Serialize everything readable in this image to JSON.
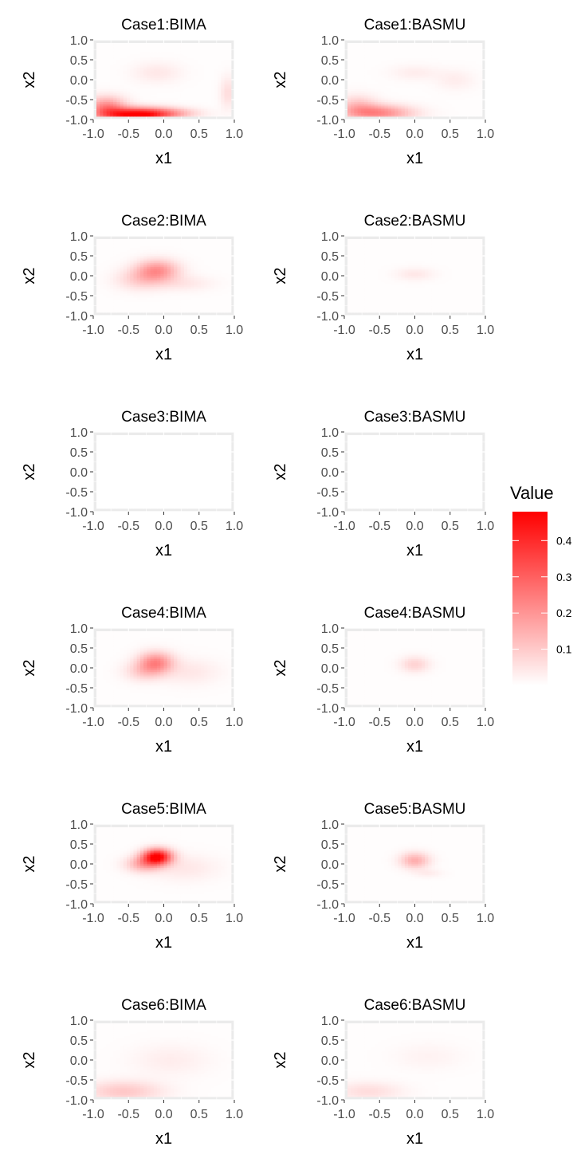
{
  "colors": {
    "low": "#ffffff",
    "high": "#ff0000",
    "panel_background": "#ebebeb",
    "grid_line": "#ffffff",
    "tick_text": "#4d4d4d",
    "axis_title_text": "#000000"
  },
  "legend": {
    "title": "Value",
    "placement": "right",
    "limits": [
      0,
      0.48
    ],
    "breaks": [
      0.1,
      0.2,
      0.3,
      0.4
    ],
    "break_labels": [
      "0.1",
      "0.2",
      "0.3",
      "0.4"
    ]
  },
  "chart_data": [
    {
      "type": "heatmap",
      "title": "Case1:BIMA",
      "xlabel": "x1",
      "ylabel": "x2",
      "xlim": [
        -1,
        1
      ],
      "ylim": [
        -1,
        1
      ],
      "x_ticks": [
        -1.0,
        -0.5,
        0.0,
        0.5,
        1.0
      ],
      "x_tick_labels": [
        "-1.0",
        "-0.5",
        "0.0",
        "0.5",
        "1.0"
      ],
      "y_ticks": [
        -1.0,
        -0.5,
        0.0,
        0.5,
        1.0
      ],
      "y_tick_labels": [
        "-1.0",
        "-0.5",
        "0.0",
        "0.5",
        "1.0"
      ],
      "grid": true,
      "blobs": [
        {
          "x": -0.4,
          "y": -0.95,
          "sx": 0.35,
          "sy": 0.13,
          "value": 0.48
        },
        {
          "x": -0.85,
          "y": -0.75,
          "sx": 0.2,
          "sy": 0.2,
          "value": 0.22
        },
        {
          "x": 0.1,
          "y": -0.9,
          "sx": 0.3,
          "sy": 0.1,
          "value": 0.1
        },
        {
          "x": 0.95,
          "y": -0.35,
          "sx": 0.08,
          "sy": 0.3,
          "value": 0.06
        },
        {
          "x": -0.1,
          "y": 0.2,
          "sx": 0.25,
          "sy": 0.2,
          "value": 0.04
        }
      ]
    },
    {
      "type": "heatmap",
      "title": "Case1:BASMU",
      "xlabel": "x1",
      "ylabel": "x2",
      "xlim": [
        -1,
        1
      ],
      "ylim": [
        -1,
        1
      ],
      "x_ticks": [
        -1.0,
        -0.5,
        0.0,
        0.5,
        1.0
      ],
      "x_tick_labels": [
        "-1.0",
        "-0.5",
        "0.0",
        "0.5",
        "1.0"
      ],
      "y_ticks": [
        -1.0,
        -0.5,
        0.0,
        0.5,
        1.0
      ],
      "y_tick_labels": [
        "-1.0",
        "-0.5",
        "0.0",
        "0.5",
        "1.0"
      ],
      "grid": true,
      "blobs": [
        {
          "x": -0.55,
          "y": -0.9,
          "sx": 0.35,
          "sy": 0.15,
          "value": 0.22
        },
        {
          "x": -0.85,
          "y": -0.7,
          "sx": 0.2,
          "sy": 0.2,
          "value": 0.1
        },
        {
          "x": 0.0,
          "y": 0.2,
          "sx": 0.25,
          "sy": 0.15,
          "value": 0.03
        },
        {
          "x": 0.6,
          "y": 0.0,
          "sx": 0.2,
          "sy": 0.2,
          "value": 0.03
        }
      ]
    },
    {
      "type": "heatmap",
      "title": "Case2:BIMA",
      "xlabel": "x1",
      "ylabel": "x2",
      "xlim": [
        -1,
        1
      ],
      "ylim": [
        -1,
        1
      ],
      "x_ticks": [
        -1.0,
        -0.5,
        0.0,
        0.5,
        1.0
      ],
      "x_tick_labels": [
        "-1.0",
        "-0.5",
        "0.0",
        "0.5",
        "1.0"
      ],
      "y_ticks": [
        -1.0,
        -0.5,
        0.0,
        0.5,
        1.0
      ],
      "y_tick_labels": [
        "-1.0",
        "-0.5",
        "0.0",
        "0.5",
        "1.0"
      ],
      "grid": true,
      "blobs": [
        {
          "x": -0.1,
          "y": 0.15,
          "sx": 0.22,
          "sy": 0.2,
          "value": 0.2
        },
        {
          "x": -0.35,
          "y": -0.1,
          "sx": 0.25,
          "sy": 0.2,
          "value": 0.08
        },
        {
          "x": 0.3,
          "y": -0.2,
          "sx": 0.3,
          "sy": 0.15,
          "value": 0.04
        }
      ]
    },
    {
      "type": "heatmap",
      "title": "Case2:BASMU",
      "xlabel": "x1",
      "ylabel": "x2",
      "xlim": [
        -1,
        1
      ],
      "ylim": [
        -1,
        1
      ],
      "x_ticks": [
        -1.0,
        -0.5,
        0.0,
        0.5,
        1.0
      ],
      "x_tick_labels": [
        "-1.0",
        "-0.5",
        "0.0",
        "0.5",
        "1.0"
      ],
      "y_ticks": [
        -1.0,
        -0.5,
        0.0,
        0.5,
        1.0
      ],
      "y_tick_labels": [
        "-1.0",
        "-0.5",
        "0.0",
        "0.5",
        "1.0"
      ],
      "grid": true,
      "blobs": [
        {
          "x": 0.0,
          "y": 0.05,
          "sx": 0.2,
          "sy": 0.12,
          "value": 0.04
        }
      ]
    },
    {
      "type": "heatmap",
      "title": "Case3:BIMA",
      "xlabel": "x1",
      "ylabel": "x2",
      "xlim": [
        -1,
        1
      ],
      "ylim": [
        -1,
        1
      ],
      "x_ticks": [
        -1.0,
        -0.5,
        0.0,
        0.5,
        1.0
      ],
      "x_tick_labels": [
        "-1.0",
        "-0.5",
        "0.0",
        "0.5",
        "1.0"
      ],
      "y_ticks": [
        -1.0,
        -0.5,
        0.0,
        0.5,
        1.0
      ],
      "y_tick_labels": [
        "-1.0",
        "-0.5",
        "0.0",
        "0.5",
        "1.0"
      ],
      "grid": true,
      "blobs": []
    },
    {
      "type": "heatmap",
      "title": "Case3:BASMU",
      "xlabel": "x1",
      "ylabel": "x2",
      "xlim": [
        -1,
        1
      ],
      "ylim": [
        -1,
        1
      ],
      "x_ticks": [
        -1.0,
        -0.5,
        0.0,
        0.5,
        1.0
      ],
      "x_tick_labels": [
        "-1.0",
        "-0.5",
        "0.0",
        "0.5",
        "1.0"
      ],
      "y_ticks": [
        -1.0,
        -0.5,
        0.0,
        0.5,
        1.0
      ],
      "y_tick_labels": [
        "-1.0",
        "-0.5",
        "0.0",
        "0.5",
        "1.0"
      ],
      "grid": true,
      "blobs": []
    },
    {
      "type": "heatmap",
      "title": "Case4:BIMA",
      "xlabel": "x1",
      "ylabel": "x2",
      "xlim": [
        -1,
        1
      ],
      "ylim": [
        -1,
        1
      ],
      "x_ticks": [
        -1.0,
        -0.5,
        0.0,
        0.5,
        1.0
      ],
      "x_tick_labels": [
        "-1.0",
        "-0.5",
        "0.0",
        "0.5",
        "1.0"
      ],
      "y_ticks": [
        -1.0,
        -0.5,
        0.0,
        0.5,
        1.0
      ],
      "y_tick_labels": [
        "-1.0",
        "-0.5",
        "0.0",
        "0.5",
        "1.0"
      ],
      "grid": true,
      "blobs": [
        {
          "x": -0.12,
          "y": 0.15,
          "sx": 0.18,
          "sy": 0.2,
          "value": 0.22
        },
        {
          "x": -0.3,
          "y": -0.1,
          "sx": 0.2,
          "sy": 0.18,
          "value": 0.08
        },
        {
          "x": 0.4,
          "y": -0.1,
          "sx": 0.3,
          "sy": 0.25,
          "value": 0.04
        }
      ]
    },
    {
      "type": "heatmap",
      "title": "Case4:BASMU",
      "xlabel": "x1",
      "ylabel": "x2",
      "xlim": [
        -1,
        1
      ],
      "ylim": [
        -1,
        1
      ],
      "x_ticks": [
        -1.0,
        -0.5,
        0.0,
        0.5,
        1.0
      ],
      "x_tick_labels": [
        "-1.0",
        "-0.5",
        "0.0",
        "0.5",
        "1.0"
      ],
      "y_ticks": [
        -1.0,
        -0.5,
        0.0,
        0.5,
        1.0
      ],
      "y_tick_labels": [
        "-1.0",
        "-0.5",
        "0.0",
        "0.5",
        "1.0"
      ],
      "grid": true,
      "blobs": [
        {
          "x": 0.0,
          "y": 0.1,
          "sx": 0.15,
          "sy": 0.15,
          "value": 0.08
        }
      ]
    },
    {
      "type": "heatmap",
      "title": "Case5:BIMA",
      "xlabel": "x1",
      "ylabel": "x2",
      "xlim": [
        -1,
        1
      ],
      "ylim": [
        -1,
        1
      ],
      "x_ticks": [
        -1.0,
        -0.5,
        0.0,
        0.5,
        1.0
      ],
      "x_tick_labels": [
        "-1.0",
        "-0.5",
        "0.0",
        "0.5",
        "1.0"
      ],
      "y_ticks": [
        -1.0,
        -0.5,
        0.0,
        0.5,
        1.0
      ],
      "y_tick_labels": [
        "-1.0",
        "-0.5",
        "0.0",
        "0.5",
        "1.0"
      ],
      "grid": true,
      "blobs": [
        {
          "x": -0.1,
          "y": 0.2,
          "sx": 0.15,
          "sy": 0.15,
          "value": 0.48
        },
        {
          "x": -0.3,
          "y": 0.0,
          "sx": 0.18,
          "sy": 0.15,
          "value": 0.15
        },
        {
          "x": 0.3,
          "y": -0.1,
          "sx": 0.35,
          "sy": 0.25,
          "value": 0.04
        }
      ]
    },
    {
      "type": "heatmap",
      "title": "Case5:BASMU",
      "xlabel": "x1",
      "ylabel": "x2",
      "xlim": [
        -1,
        1
      ],
      "ylim": [
        -1,
        1
      ],
      "x_ticks": [
        -1.0,
        -0.5,
        0.0,
        0.5,
        1.0
      ],
      "x_tick_labels": [
        "-1.0",
        "-0.5",
        "0.0",
        "0.5",
        "1.0"
      ],
      "y_ticks": [
        -1.0,
        -0.5,
        0.0,
        0.5,
        1.0
      ],
      "y_tick_labels": [
        "-1.0",
        "-0.5",
        "0.0",
        "0.5",
        "1.0"
      ],
      "grid": true,
      "blobs": [
        {
          "x": 0.0,
          "y": 0.1,
          "sx": 0.15,
          "sy": 0.15,
          "value": 0.15
        },
        {
          "x": 0.2,
          "y": -0.25,
          "sx": 0.15,
          "sy": 0.08,
          "value": 0.03
        }
      ]
    },
    {
      "type": "heatmap",
      "title": "Case6:BIMA",
      "xlabel": "x1",
      "ylabel": "x2",
      "xlim": [
        -1,
        1
      ],
      "ylim": [
        -1,
        1
      ],
      "x_ticks": [
        -1.0,
        -0.5,
        0.0,
        0.5,
        1.0
      ],
      "x_tick_labels": [
        "-1.0",
        "-0.5",
        "0.0",
        "0.5",
        "1.0"
      ],
      "y_ticks": [
        -1.0,
        -0.5,
        0.0,
        0.5,
        1.0
      ],
      "y_tick_labels": [
        "-1.0",
        "-0.5",
        "0.0",
        "0.5",
        "1.0"
      ],
      "grid": true,
      "blobs": [
        {
          "x": -0.6,
          "y": -0.85,
          "sx": 0.4,
          "sy": 0.2,
          "value": 0.1
        },
        {
          "x": 0.1,
          "y": 0.0,
          "sx": 0.4,
          "sy": 0.3,
          "value": 0.03
        }
      ]
    },
    {
      "type": "heatmap",
      "title": "Case6:BASMU",
      "xlabel": "x1",
      "ylabel": "x2",
      "xlim": [
        -1,
        1
      ],
      "ylim": [
        -1,
        1
      ],
      "x_ticks": [
        -1.0,
        -0.5,
        0.0,
        0.5,
        1.0
      ],
      "x_tick_labels": [
        "-1.0",
        "-0.5",
        "0.0",
        "0.5",
        "1.0"
      ],
      "y_ticks": [
        -1.0,
        -0.5,
        0.0,
        0.5,
        1.0
      ],
      "y_tick_labels": [
        "-1.0",
        "-0.5",
        "0.0",
        "0.5",
        "1.0"
      ],
      "grid": true,
      "blobs": [
        {
          "x": -0.7,
          "y": -0.85,
          "sx": 0.35,
          "sy": 0.18,
          "value": 0.06
        },
        {
          "x": 0.2,
          "y": 0.1,
          "sx": 0.35,
          "sy": 0.25,
          "value": 0.02
        }
      ]
    }
  ]
}
